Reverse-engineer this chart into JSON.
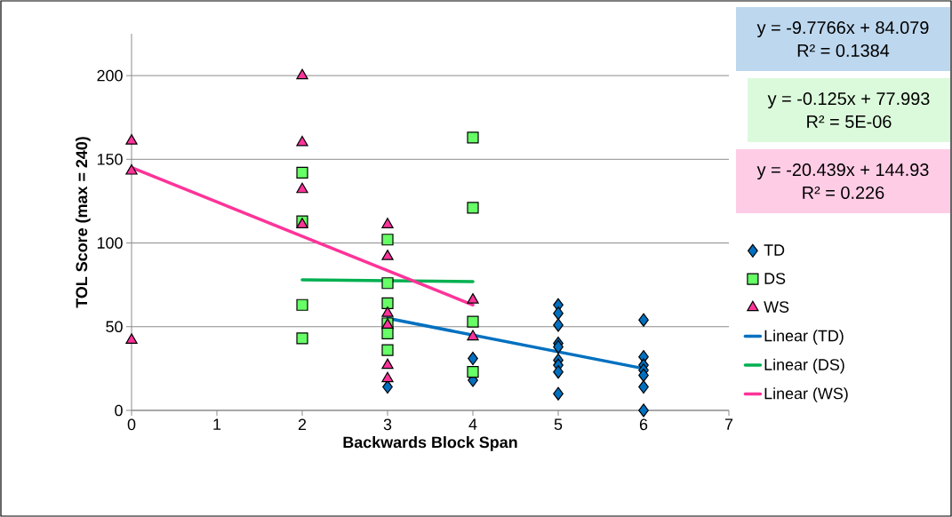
{
  "chart_data": {
    "type": "scatter",
    "xlabel": "Backwards Block Span",
    "ylabel": "TOL Score (max = 240)",
    "xlim": [
      0,
      7
    ],
    "xticks": [
      0,
      1,
      2,
      3,
      4,
      5,
      6,
      7
    ],
    "ylim": [
      0,
      225
    ],
    "yticks": [
      0,
      50,
      100,
      150,
      200
    ],
    "grid": "y",
    "legend": "right",
    "annotations": [
      "y = -9.7766x + 84.079",
      "R² = 0.1384",
      "y = -0.125x + 77.993",
      "R² = 5E-06",
      "y = -20.439x + 144.93",
      "R² = 0.226"
    ],
    "series": [
      {
        "name": "TD",
        "marker": "diamond",
        "color": "#0070c0",
        "x": [
          3,
          4,
          4,
          5,
          5,
          5,
          5,
          5,
          5,
          5,
          5,
          5,
          6,
          6,
          6,
          6,
          6,
          6,
          6
        ],
        "values": [
          14,
          31,
          18,
          63,
          58,
          51,
          40,
          38,
          30,
          27,
          23,
          10,
          54,
          32,
          27,
          24,
          21,
          14,
          0
        ]
      },
      {
        "name": "DS",
        "marker": "square",
        "color": "#66ff66",
        "x": [
          2,
          2,
          2,
          2,
          3,
          3,
          3,
          3,
          3,
          3,
          4,
          4,
          4,
          4
        ],
        "values": [
          142,
          113,
          63,
          43,
          102,
          76,
          64,
          52,
          46,
          36,
          163,
          121,
          53,
          23
        ]
      },
      {
        "name": "WS",
        "marker": "triangle",
        "color": "#ff3399",
        "x": [
          0,
          0,
          0,
          2,
          2,
          2,
          2,
          3,
          3,
          3,
          3,
          3,
          3,
          4,
          4
        ],
        "values": [
          161,
          143,
          42,
          200,
          160,
          132,
          111,
          111,
          92,
          58,
          51,
          27,
          19,
          66,
          44
        ]
      },
      {
        "name": "Linear (TD)",
        "type": "line",
        "marker": "none",
        "color": "#0070c0",
        "x": [
          3,
          6
        ],
        "values": [
          55,
          25
        ]
      },
      {
        "name": "Linear (DS)",
        "type": "line",
        "marker": "none",
        "color": "#00b050",
        "x": [
          2,
          4
        ],
        "values": [
          78,
          77
        ]
      },
      {
        "name": "Linear (WS)",
        "type": "line",
        "marker": "none",
        "color": "#ff3399",
        "x": [
          0,
          4
        ],
        "values": [
          145,
          63
        ]
      }
    ]
  }
}
